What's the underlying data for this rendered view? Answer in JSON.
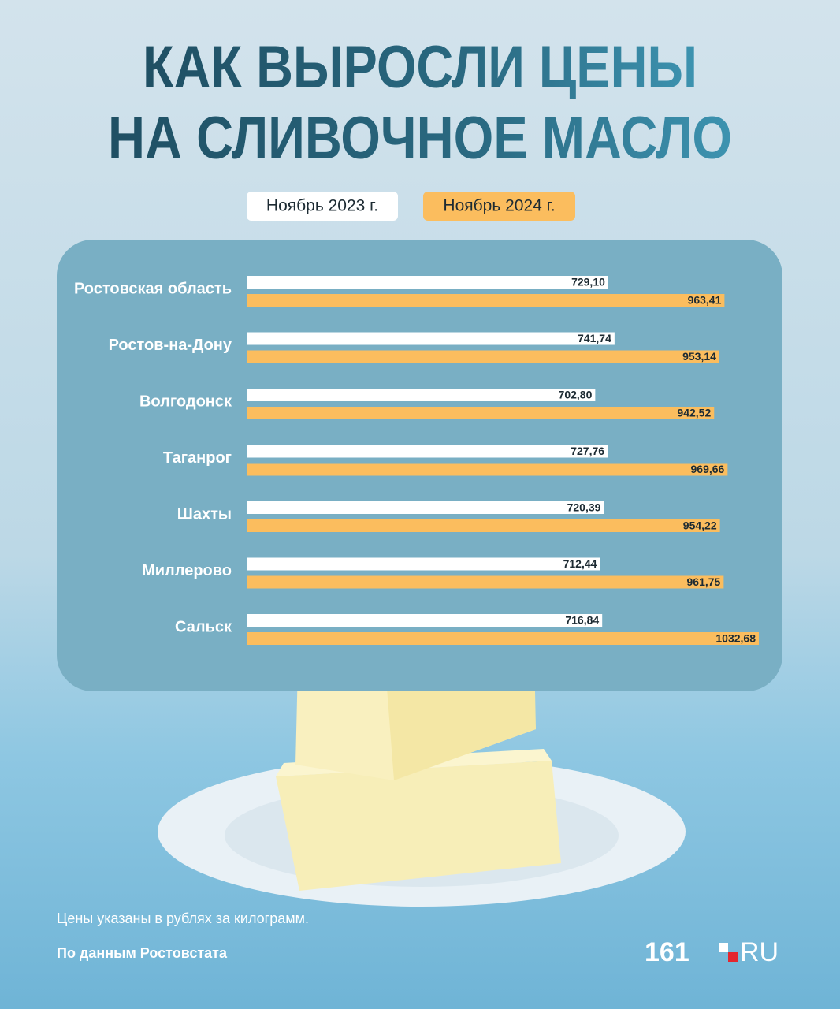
{
  "chart_data": {
    "type": "bar",
    "orientation": "horizontal",
    "title": [
      "КАК ВЫРОСЛИ ЦЕНЫ",
      "НА СЛИВОЧНОЕ МАСЛО"
    ],
    "categories": [
      "Ростовская область",
      "Ростов-на-Дону",
      "Волгодонск",
      "Таганрог",
      "Шахты",
      "Миллерово",
      "Сальск"
    ],
    "series": [
      {
        "name": "Ноябрь 2023 г.",
        "color": "#ffffff",
        "values": [
          729.1,
          741.74,
          702.8,
          727.76,
          720.39,
          712.44,
          716.84
        ],
        "value_labels": [
          "729,10",
          "741,74",
          "702,80",
          "727,76",
          "720,39",
          "712,44",
          "716,84"
        ]
      },
      {
        "name": "Ноябрь 2024 г.",
        "color": "#fbbd5e",
        "values": [
          963.41,
          953.14,
          942.52,
          969.66,
          954.22,
          961.75,
          1032.68
        ],
        "value_labels": [
          "963,41",
          "953,14",
          "942,52",
          "969,66",
          "954,22",
          "961,75",
          "1032,68"
        ]
      }
    ],
    "notes": [
      "Цены указаны в рублях за килограмм.",
      "По данным Ростовстата"
    ],
    "logo": [
      "161",
      "RU"
    ]
  }
}
